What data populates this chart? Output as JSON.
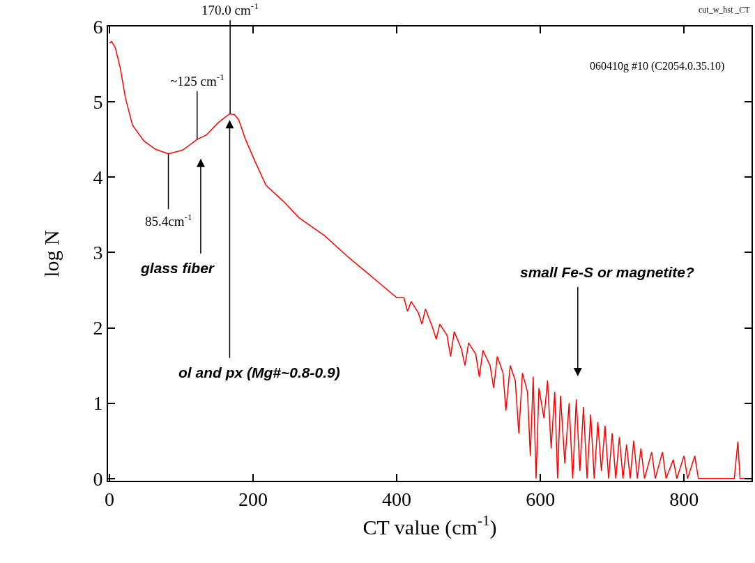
{
  "chart_data": {
    "type": "line",
    "xlabel": "CT value (cm$^{-1}$)",
    "ylabel": "log N",
    "xlim": [
      -2,
      894
    ],
    "ylim": [
      -0.03,
      6
    ],
    "xticks": [
      0,
      200,
      400,
      600,
      800
    ],
    "yticks": [
      0,
      1,
      2,
      3,
      4,
      5,
      6
    ],
    "marker": "none",
    "line_style": "solid",
    "series": [
      {
        "color": "#ff0000",
        "x": [
          0,
          3,
          8,
          15,
          22,
          32,
          48,
          64,
          82,
          102,
          122,
          135,
          151,
          167,
          174,
          180,
          189,
          203,
          218,
          242,
          264,
          300,
          331,
          360,
          380,
          400,
          410,
          415,
          420,
          430,
          435,
          440,
          450,
          455,
          460,
          470,
          475,
          480,
          490,
          495,
          500,
          510,
          515,
          520,
          530,
          535,
          540,
          548,
          552,
          558,
          565,
          570,
          575,
          582,
          586,
          590,
          594,
          598,
          605,
          610,
          615,
          620,
          624,
          628,
          634,
          640,
          645,
          650,
          655,
          660,
          665,
          670,
          675,
          680,
          685,
          690,
          695,
          700,
          705,
          710,
          715,
          720,
          725,
          730,
          735,
          740,
          745,
          755,
          760,
          770,
          775,
          785,
          790,
          800,
          805,
          815,
          820,
          870,
          875,
          878,
          894
        ],
        "values": [
          5.78,
          5.8,
          5.72,
          5.45,
          5.06,
          4.69,
          4.48,
          4.37,
          4.31,
          4.36,
          4.5,
          4.56,
          4.72,
          4.84,
          4.83,
          4.76,
          4.51,
          4.2,
          3.89,
          3.68,
          3.46,
          3.22,
          2.95,
          2.72,
          2.56,
          2.4,
          2.4,
          2.22,
          2.35,
          2.2,
          2.05,
          2.25,
          2.0,
          1.85,
          2.05,
          1.9,
          1.62,
          1.95,
          1.72,
          1.5,
          1.8,
          1.65,
          1.35,
          1.7,
          1.5,
          1.2,
          1.62,
          1.4,
          0.9,
          1.5,
          1.3,
          0.6,
          1.4,
          1.15,
          0.3,
          1.35,
          0.0,
          1.2,
          0.8,
          1.3,
          0.4,
          1.15,
          0.0,
          1.1,
          0.2,
          1.0,
          0.0,
          1.05,
          0.1,
          0.95,
          0.0,
          0.85,
          0.0,
          0.75,
          0.1,
          0.7,
          0.0,
          0.6,
          0.0,
          0.55,
          0.0,
          0.45,
          0.0,
          0.5,
          0.0,
          0.4,
          0.0,
          0.35,
          0.0,
          0.35,
          0.0,
          0.25,
          0.0,
          0.3,
          0.0,
          0.3,
          0.0,
          0.0,
          0.49,
          0.0,
          0.0
        ]
      }
    ],
    "annotations": [
      {
        "text": "170.0 cm$^{-1}$",
        "x": 168,
        "y": 4.84
      },
      {
        "text": "~125 cm$^{-1}$",
        "x": 122,
        "y": 4.5
      },
      {
        "text": "85.4cm$^{-1}$",
        "x": 82,
        "y": 4.31
      },
      "glass fiber",
      "ol and px (Mg#~0.8-0.9)",
      "small Fe-S or magnetite?",
      "060410g #10 (C2054.0.35.10)",
      "cut_w_hst _CT"
    ]
  }
}
